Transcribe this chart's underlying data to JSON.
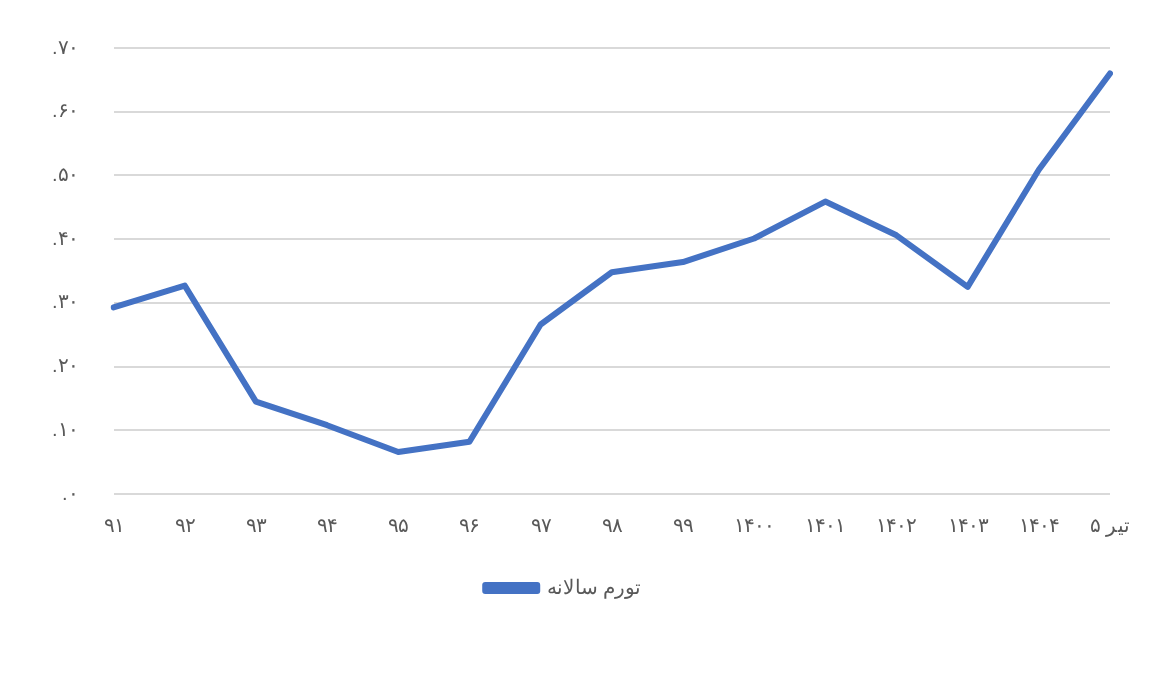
{
  "chart_data": {
    "type": "line",
    "categories": [
      "۹۱",
      "۹۲",
      "۹۳",
      "۹۴",
      "۹۵",
      "۹۶",
      "۹۷",
      "۹۸",
      "۹۹",
      "۱۴۰۰",
      "۱۴۰۱",
      "۱۴۰۲",
      "۱۴۰۳",
      "۱۴۰۴",
      "تیر ۵"
    ],
    "series": [
      {
        "name": "تورم سالانه",
        "color": "#4472c4",
        "values": [
          0.293,
          0.327,
          0.145,
          0.108,
          0.066,
          0.082,
          0.266,
          0.348,
          0.364,
          0.401,
          0.459,
          0.406,
          0.325,
          0.509,
          0.66
        ]
      }
    ],
    "ylim": [
      0,
      0.7
    ],
    "yticks": [
      {
        "value": 0,
        "label": ".۰"
      },
      {
        "value": 0.1,
        "label": ".۱۰"
      },
      {
        "value": 0.2,
        "label": ".۲۰"
      },
      {
        "value": 0.3,
        "label": ".۳۰"
      },
      {
        "value": 0.4,
        "label": ".۴۰"
      },
      {
        "value": 0.5,
        "label": ".۵۰"
      },
      {
        "value": 0.6,
        "label": ".۶۰"
      },
      {
        "value": 0.7,
        "label": ".۷۰"
      }
    ],
    "grid": "y",
    "legend": "bottom",
    "marker": "none",
    "line_style": "solid"
  }
}
